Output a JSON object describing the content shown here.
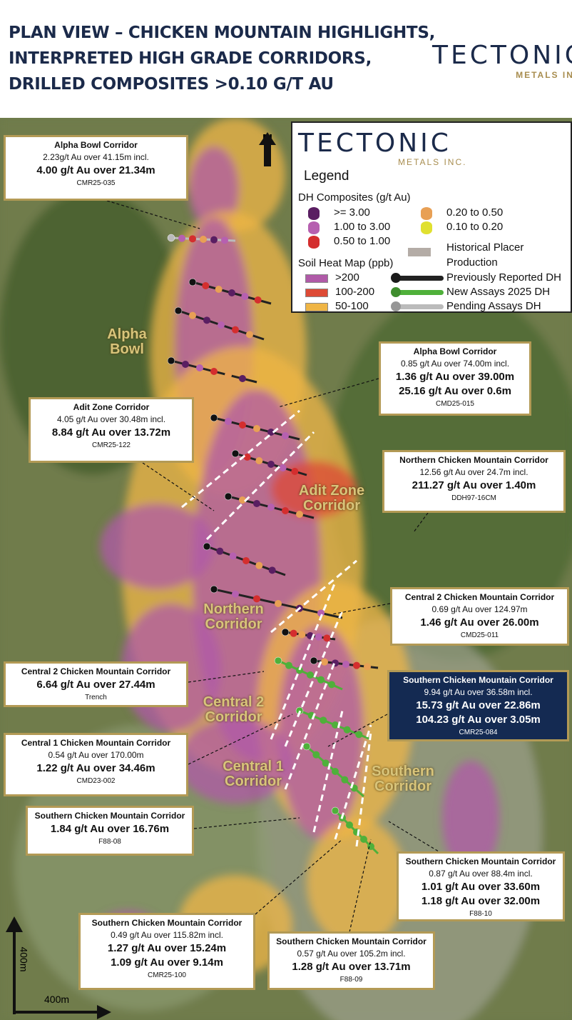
{
  "header": {
    "title_lines": [
      "PLAN VIEW – CHICKEN MOUNTAIN HIGHLIGHTS,",
      "INTERPRETED HIGH GRADE CORRIDORS,",
      "DRILLED COMPOSITES >0.10 G/T AU"
    ],
    "logo_main": "TECTONIC",
    "logo_sub": "METALS INC."
  },
  "north_label": "N",
  "legend": {
    "logo_main": "TECTONIC",
    "logo_sub": "METALS INC.",
    "title": "Legend",
    "dh_title": "DH Composites (g/t Au)",
    "dh_classes": [
      {
        "label": ">= 3.00",
        "color": "#5a1e62"
      },
      {
        "label": "1.00 to 3.00",
        "color": "#b660b0"
      },
      {
        "label": "0.50 to 1.00",
        "color": "#d42e2e"
      },
      {
        "label": "0.20 to 0.50",
        "color": "#e8a055"
      },
      {
        "label": "0.10 to 0.20",
        "color": "#e0e030"
      }
    ],
    "placer": "Historical Placer Production",
    "placer_color": "#b4aca6",
    "soil_title": "Soil Heat Map (ppb)",
    "soil_classes": [
      {
        "label": ">200",
        "color": "#b05aa8"
      },
      {
        "label": "100-200",
        "color": "#dd4a35"
      },
      {
        "label": "50-100",
        "color": "#efb545"
      }
    ],
    "dh_types": [
      {
        "label": "Previously Reported DH",
        "color": "#222222"
      },
      {
        "label": "New Assays 2025 DH",
        "color": "#4fb03a"
      },
      {
        "label": "Pending Assays DH",
        "color": "#bbbbbb"
      }
    ]
  },
  "map_labels": [
    "Alpha Bowl",
    "Adit Zone Corridor",
    "Northern Corridor",
    "Central 2 Corridor",
    "Central 1 Corridor",
    "Southern Corridor"
  ],
  "callouts": [
    {
      "title": "Alpha Bowl Corridor",
      "lines": [
        "2.23g/t Au over 41.15m incl."
      ],
      "bold": [
        "4.00 g/t Au over 21.34m"
      ],
      "id": "CMR25-035"
    },
    {
      "title": "Alpha Bowl Corridor",
      "lines": [
        "0.85 g/t Au over 74.00m incl."
      ],
      "bold": [
        "1.36 g/t Au over 39.00m",
        "25.16 g/t Au over 0.6m"
      ],
      "id": "CMD25-015"
    },
    {
      "title": "Adit Zone Corridor",
      "lines": [
        "4.05 g/t Au over 30.48m incl."
      ],
      "bold": [
        "8.84 g/t Au over 13.72m"
      ],
      "id": "CMR25-122"
    },
    {
      "title": "Northern Chicken Mountain Corridor",
      "lines": [
        "12.56 g/t Au over 24.7m incl."
      ],
      "bold": [
        "211.27 g/t Au over 1.40m"
      ],
      "id": "DDH97-16CM"
    },
    {
      "title": "Central 2 Chicken Mountain Corridor",
      "lines": [
        "0.69 g/t Au over 124.97m"
      ],
      "bold": [
        "1.46 g/t Au over 26.00m"
      ],
      "id": "CMD25-011"
    },
    {
      "title": "Central 2 Chicken Mountain Corridor",
      "lines": [],
      "bold": [
        "6.64 g/t Au over 27.44m"
      ],
      "id": "Trench"
    },
    {
      "title": "Southern Chicken Mountain Corridor",
      "lines": [
        "9.94 g/t Au over 36.58m incl."
      ],
      "bold": [
        "15.73 g/t Au over 22.86m",
        "104.23 g/t Au over 3.05m"
      ],
      "id": "CMR25-084"
    },
    {
      "title": "Central 1 Chicken Mountain Corridor",
      "lines": [
        "0.54 g/t Au over 170.00m"
      ],
      "bold": [
        "1.22 g/t Au over 34.46m"
      ],
      "id": "CMD23-002"
    },
    {
      "title": "Southern Chicken Mountain Corridor",
      "lines": [],
      "bold": [
        "1.84 g/t Au over 16.76m"
      ],
      "id": "F88-08"
    },
    {
      "title": "Southern Chicken Mountain Corridor",
      "lines": [
        "0.87 g/t Au over 88.4m incl."
      ],
      "bold": [
        "1.01 g/t Au over 33.60m",
        "1.18 g/t Au over 32.00m"
      ],
      "id": "F88-10"
    },
    {
      "title": "Southern Chicken Mountain Corridor",
      "lines": [
        "0.49 g/t Au over 115.82m incl."
      ],
      "bold": [
        "1.27 g/t Au over 15.24m",
        "1.09 g/t Au over 9.14m"
      ],
      "id": "CMR25-100"
    },
    {
      "title": "Southern Chicken Mountain Corridor",
      "lines": [
        "0.57 g/t Au over 105.2m incl."
      ],
      "bold": [
        "1.28 g/t Au over 13.71m"
      ],
      "id": "F88-09"
    }
  ],
  "scale": {
    "vertical": "400m",
    "horizontal": "400m"
  }
}
